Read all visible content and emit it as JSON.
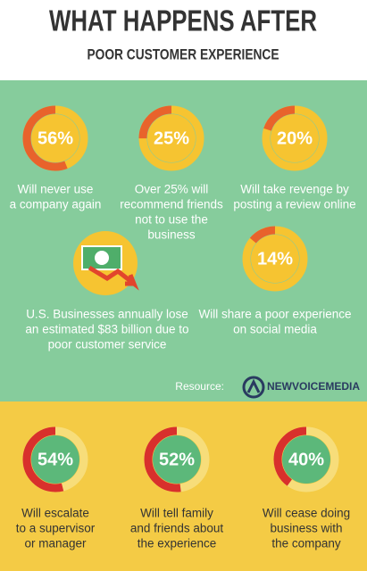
{
  "header": {
    "title": "WHAT HAPPENS AFTER",
    "subtitle": "POOR CUSTOMER EXPERIENCE"
  },
  "green_stats": [
    {
      "value": 56,
      "label": "56%",
      "text": [
        "Will never use",
        "a company again"
      ]
    },
    {
      "value": 25,
      "label": "25%",
      "text": [
        "Over 25% will",
        "recommend friends",
        "not to use the",
        "business"
      ]
    },
    {
      "value": 20,
      "label": "20%",
      "text": [
        "Will take revenge by",
        "posting a review online"
      ]
    },
    {
      "value": 14,
      "label": "14%",
      "text": [
        "Will share a poor experience",
        "on social media"
      ]
    }
  ],
  "loss": {
    "text": [
      "U.S. Businesses annually lose",
      "an estimated $83 billion due to",
      "poor customer service"
    ]
  },
  "resource": {
    "label": "Resource:",
    "brand": "NEWVOICEMEDIA"
  },
  "yellow_stats": [
    {
      "value": 54,
      "label": "54%",
      "text": [
        "Will escalate",
        "to a supervisor",
        "or manager"
      ]
    },
    {
      "value": 52,
      "label": "52%",
      "text": [
        "Will tell family",
        "and friends about",
        "the experience"
      ]
    },
    {
      "value": 40,
      "label": "40%",
      "text": [
        "Will cease doing",
        "business with",
        "the company"
      ]
    }
  ]
}
